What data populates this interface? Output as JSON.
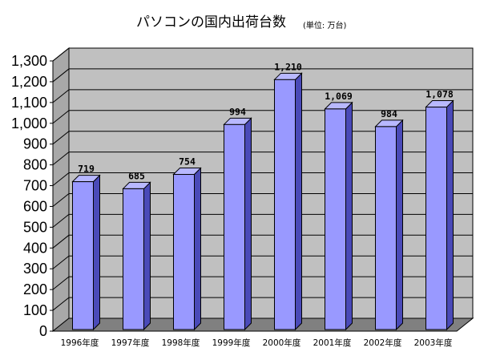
{
  "chart_data": {
    "type": "bar",
    "title": "パソコンの国内出荷台数",
    "title_unit": "(単位: 万台)",
    "xlabel": "",
    "ylabel": "",
    "categories": [
      "1996年度",
      "1997年度",
      "1998年度",
      "1999年度",
      "2000年度",
      "2001年度",
      "2002年度",
      "2003年度"
    ],
    "values": [
      719,
      685,
      754,
      994,
      1210,
      1069,
      984,
      1078
    ],
    "data_labels": [
      "719",
      "685",
      "754",
      "994",
      "1,210",
      "1,069",
      "984",
      "1,078"
    ],
    "ylim": [
      0,
      1300
    ],
    "yticks": [
      0,
      100,
      200,
      300,
      400,
      500,
      600,
      700,
      800,
      900,
      1000,
      1100,
      1200,
      1300
    ],
    "ytick_labels": [
      "0",
      "100",
      "200",
      "300",
      "400",
      "500",
      "600",
      "700",
      "800",
      "900",
      "1,000",
      "1,100",
      "1,200",
      "1,300"
    ],
    "grid": true,
    "legend": "none",
    "style": "3d-column",
    "colors": {
      "bar_front": "#9999ff",
      "bar_side": "#4a4ab8",
      "bar_top": "#b8b8ff",
      "back_wall": "#c0c0c0",
      "floor": "#808080",
      "gridline": "#000000"
    }
  }
}
